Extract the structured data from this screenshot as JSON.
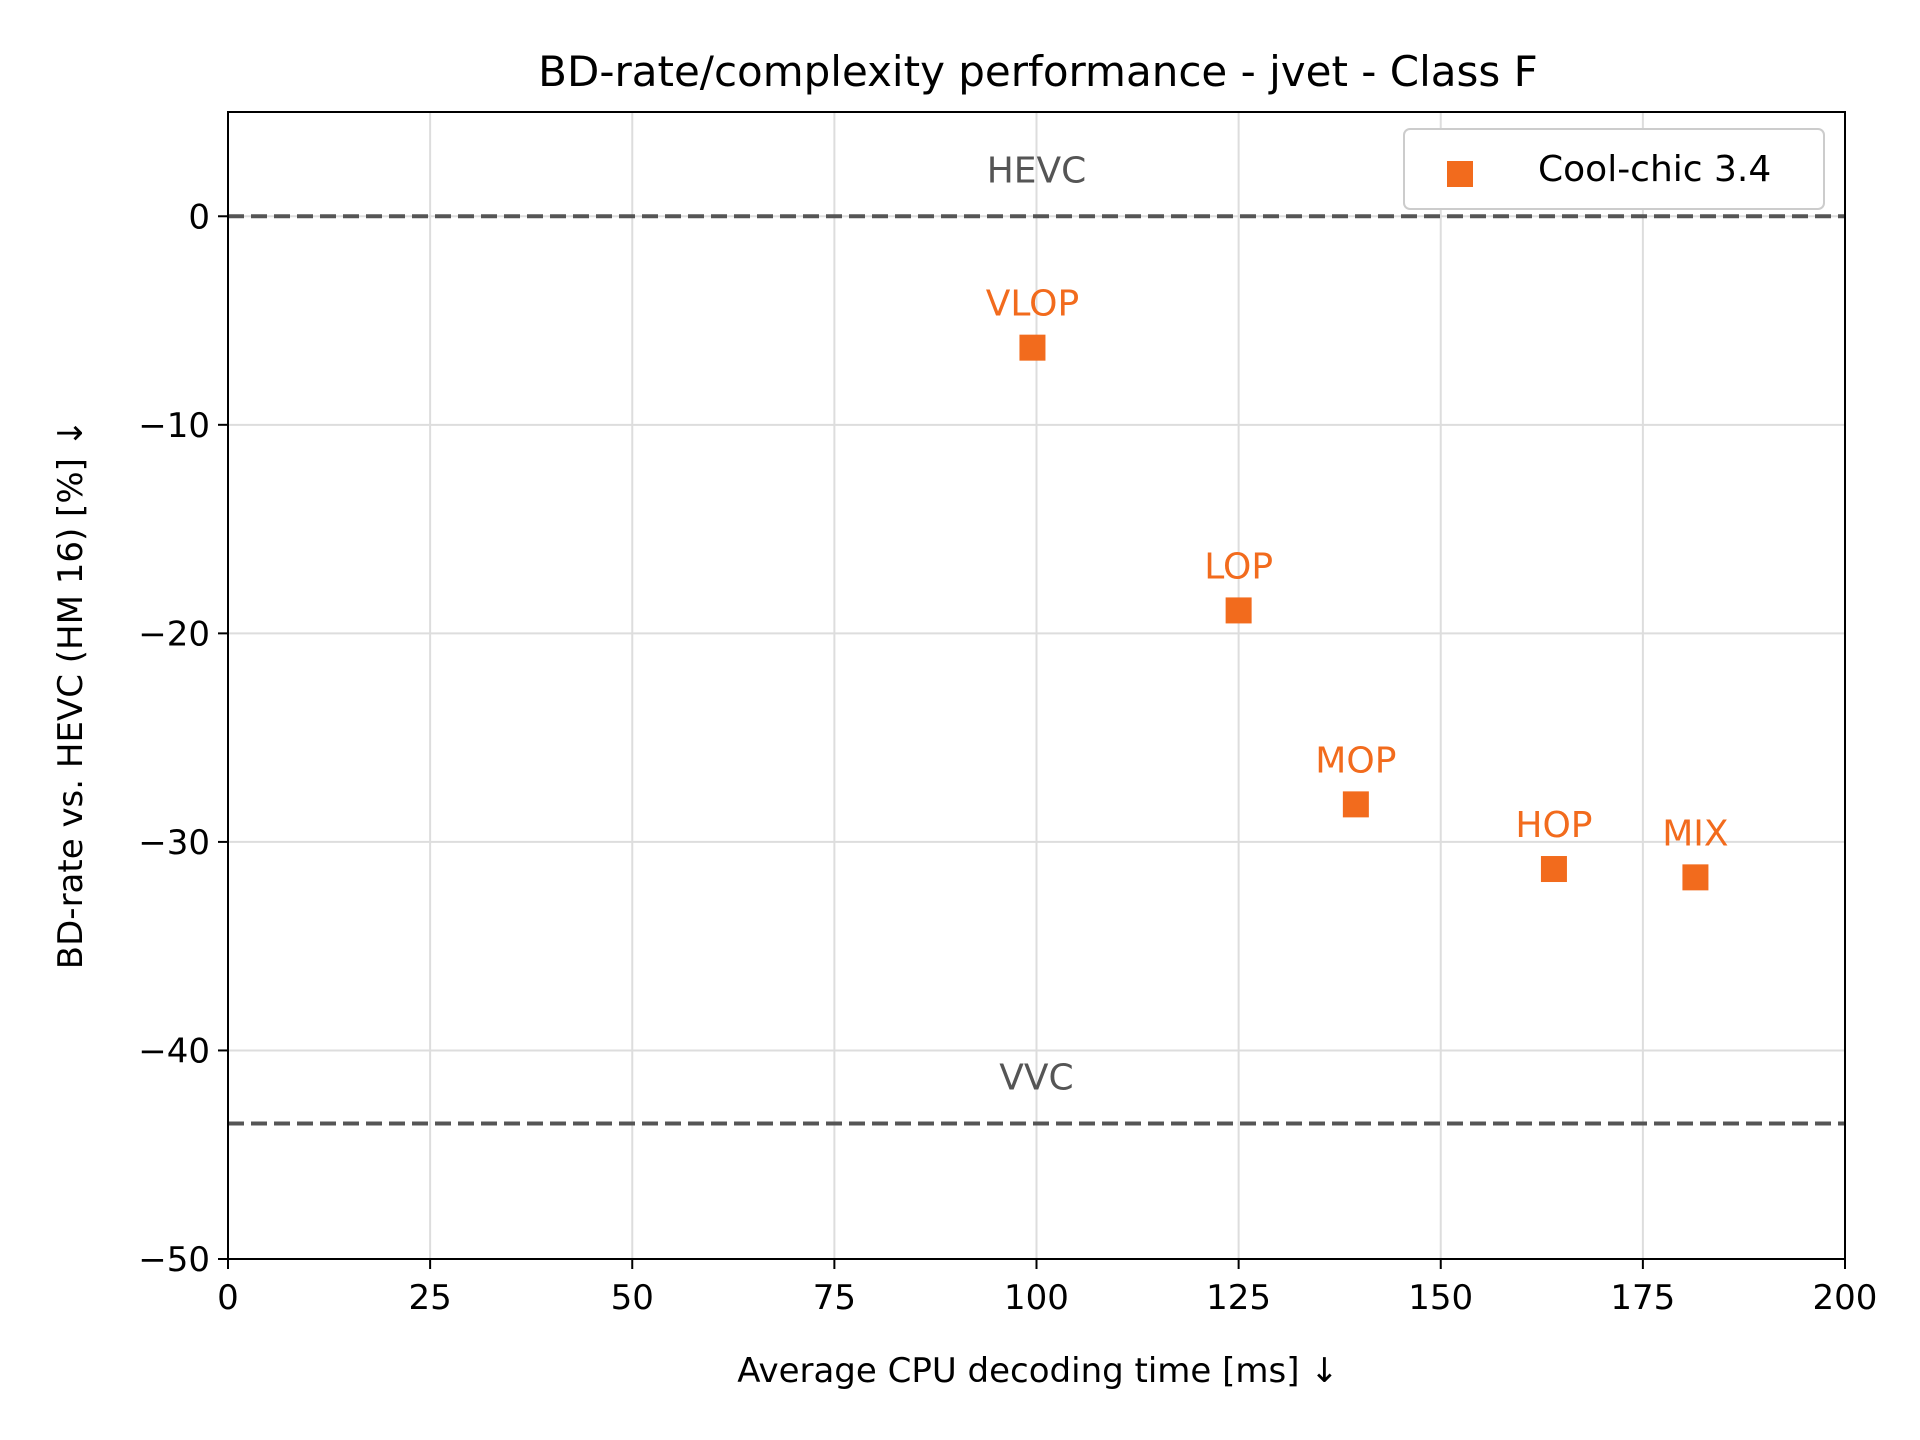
{
  "chart_data": {
    "type": "scatter",
    "title": "BD-rate/complexity performance - jvet - Class F",
    "xlabel": "Average CPU decoding time [ms]  ↓",
    "ylabel": "BD-rate vs. HEVC (HM 16) [%]  ↓",
    "xlim": [
      0,
      200
    ],
    "ylim": [
      -50,
      5
    ],
    "xticks": [
      0,
      25,
      50,
      75,
      100,
      125,
      150,
      175,
      200
    ],
    "xtick_labels": [
      "0",
      "25",
      "50",
      "75",
      "100",
      "125",
      "150",
      "175",
      "200"
    ],
    "yticks": [
      0,
      -10,
      -20,
      -30,
      -40,
      -50
    ],
    "ytick_labels": [
      "0",
      "−10",
      "−20",
      "−30",
      "−40",
      "−50"
    ],
    "grid": true,
    "legend_position": "top-right",
    "series": [
      {
        "name": "Cool-chic 3.4",
        "color": "#f26b1d",
        "marker": "square",
        "points": [
          {
            "label": "VLOP",
            "x": 99.5,
            "y": -6.3
          },
          {
            "label": "LOP",
            "x": 125.0,
            "y": -18.9
          },
          {
            "label": "MOP",
            "x": 139.5,
            "y": -28.2
          },
          {
            "label": "HOP",
            "x": 164.0,
            "y": -31.3
          },
          {
            "label": "MIX",
            "x": 181.5,
            "y": -31.7
          }
        ]
      }
    ],
    "reference_lines": [
      {
        "label": "HEVC",
        "y": 0,
        "color": "#555555",
        "style": "dashed"
      },
      {
        "label": "VVC",
        "y": -43.5,
        "color": "#555555",
        "style": "dashed"
      }
    ]
  }
}
